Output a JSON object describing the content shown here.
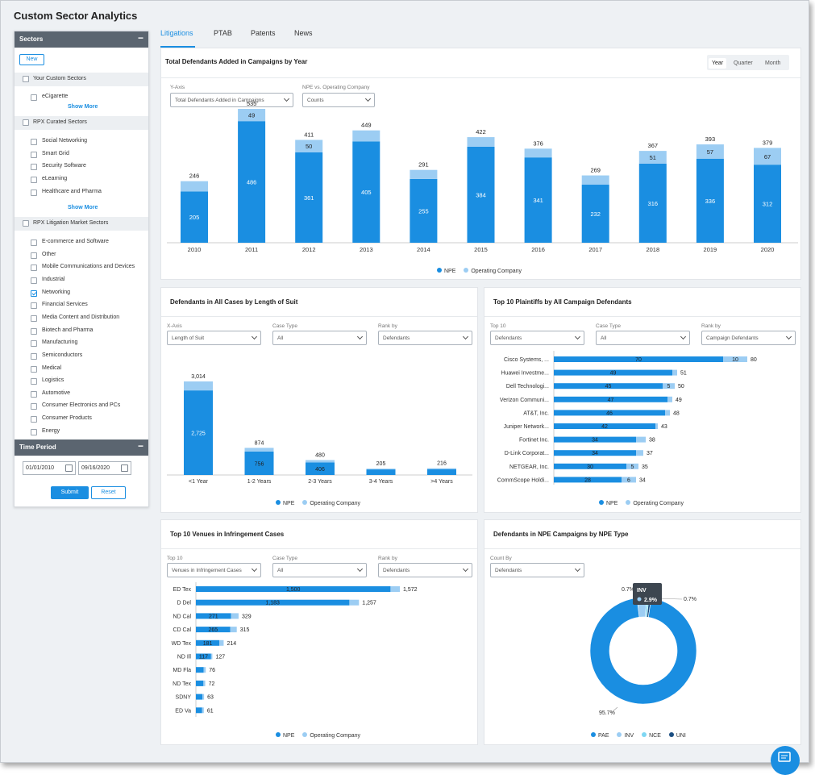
{
  "app": {
    "title": "Custom Sector Analytics"
  },
  "sidebar": {
    "sectors_header": "Sectors",
    "new_label": "New",
    "custom_group": "Your Custom Sectors",
    "custom_items": [
      "eCigarette"
    ],
    "show_more": "Show More",
    "curated_group": "RPX Curated Sectors",
    "curated_items": [
      "Social Networking",
      "Smart Grid",
      "Security Software",
      "eLearning",
      "Healthcare and Pharma"
    ],
    "market_group": "RPX Litigation Market Sectors",
    "market_items": [
      "E-commerce and Software",
      "Other",
      "Mobile Communications and Devices",
      "Industrial",
      "Networking",
      "Financial Services",
      "Media Content and Distribution",
      "Biotech and Pharma",
      "Manufacturing",
      "Semiconductors",
      "Medical",
      "Logistics",
      "Automotive",
      "Consumer Electronics and PCs",
      "Consumer Products",
      "Energy"
    ],
    "checked_item": "Networking",
    "time_header": "Time Period",
    "start_date": "01/01/2010",
    "end_date": "09/16/2020",
    "submit_label": "Submit",
    "reset_label": "Reset"
  },
  "tabs": [
    "Litigations",
    "PTAB",
    "Patents",
    "News"
  ],
  "active_tab": "Litigations",
  "colors": {
    "npe": "#1a8ee1",
    "operating": "#9ccdf3",
    "pae": "#1a8ee1",
    "inv": "#9ccdf3",
    "nce": "#7fd7f3",
    "uni": "#1c4f82",
    "tooltip": "#3d4650"
  },
  "panel1": {
    "title": "Total Defendants Added in Campaigns by Year",
    "granularity": [
      "Year",
      "Quarter",
      "Month"
    ],
    "selected_granularity": "Year",
    "yaxis_label": "Y-Axis",
    "yaxis_value": "Total Defendants Added in Campaigns",
    "npe_label": "NPE vs. Operating Company",
    "npe_value": "Counts",
    "legend": [
      "NPE",
      "Operating Company"
    ]
  },
  "panel2": {
    "title": "Defendants in All Cases by Length of Suit",
    "xaxis_label": "X-Axis",
    "xaxis_value": "Length of Suit",
    "casetype_label": "Case Type",
    "casetype_value": "All",
    "rankby_label": "Rank by",
    "rankby_value": "Defendants",
    "legend": [
      "NPE",
      "Operating Company"
    ]
  },
  "panel3": {
    "title": "Top 10 Plaintiffs by All Campaign Defendants",
    "top_label": "Top 10",
    "top_value": "Defendants",
    "casetype_label": "Case Type",
    "casetype_value": "All",
    "rankby_label": "Rank by",
    "rankby_value": "Campaign Defendants",
    "legend": [
      "NPE",
      "Operating Company"
    ]
  },
  "panel4": {
    "title": "Top 10 Venues in Infringement Cases",
    "top_label": "Top 10",
    "top_value": "Venues in Infringement Cases",
    "casetype_label": "Case Type",
    "casetype_value": "All",
    "rankby_label": "Rank by",
    "rankby_value": "Defendants",
    "legend": [
      "NPE",
      "Operating Company"
    ]
  },
  "panel5": {
    "title": "Defendants in NPE Campaigns by NPE Type",
    "countby_label": "Count By",
    "countby_value": "Defendants",
    "tooltip_title": "INV",
    "tooltip_value": "2.9%",
    "legend": [
      "PAE",
      "INV",
      "NCE",
      "UNI"
    ]
  },
  "chart_data": [
    {
      "type": "bar",
      "title": "Total Defendants Added in Campaigns by Year",
      "categories": [
        "2010",
        "2011",
        "2012",
        "2013",
        "2014",
        "2015",
        "2016",
        "2017",
        "2018",
        "2019",
        "2020"
      ],
      "series": [
        {
          "name": "NPE",
          "values": [
            205,
            486,
            361,
            405,
            255,
            384,
            341,
            232,
            316,
            336,
            312
          ]
        },
        {
          "name": "Operating Company",
          "values": [
            41,
            49,
            50,
            44,
            36,
            38,
            35,
            37,
            51,
            57,
            67
          ]
        }
      ],
      "totals": [
        246,
        535,
        411,
        449,
        291,
        422,
        376,
        269,
        367,
        393,
        379
      ],
      "npe_labels": [
        "205",
        "486",
        "361",
        "405",
        "255",
        "384",
        "341",
        "232",
        "316",
        "336",
        "312"
      ],
      "op_labels": [
        "",
        "49",
        "50",
        "",
        "",
        "",
        "",
        "",
        "51",
        "57",
        "67"
      ],
      "total_labels": [
        "246",
        "535",
        "411",
        "449",
        "291",
        "422",
        "376",
        "269",
        "367",
        "393",
        "379"
      ],
      "ylim": [
        0,
        560
      ]
    },
    {
      "type": "bar",
      "title": "Defendants in All Cases by Length of Suit",
      "categories": [
        "<1 Year",
        "1-2 Years",
        "2-3 Years",
        "3-4 Years",
        ">4 Years"
      ],
      "series": [
        {
          "name": "NPE",
          "values": [
            2725,
            756,
            406,
            180,
            190
          ]
        },
        {
          "name": "Operating Company",
          "values": [
            289,
            118,
            74,
            25,
            26
          ]
        }
      ],
      "totals": [
        3014,
        874,
        480,
        205,
        216
      ],
      "npe_labels": [
        "2,725",
        "756",
        "406",
        "",
        ""
      ],
      "total_labels": [
        "3,014",
        "874",
        "480",
        "205",
        "216"
      ],
      "ylim": [
        0,
        3200
      ]
    },
    {
      "type": "bar",
      "orientation": "horizontal",
      "title": "Top 10 Plaintiffs by All Campaign Defendants",
      "categories": [
        "Cisco Systems, ...",
        "Huawei Investme...",
        "Dell Technologi...",
        "Verizon Communi...",
        "AT&T, Inc.",
        "Juniper Network...",
        "Fortinet Inc.",
        "D-Link Corporat...",
        "NETGEAR, Inc.",
        "CommScope Holdi..."
      ],
      "series": [
        {
          "name": "NPE",
          "values": [
            70,
            49,
            45,
            47,
            46,
            42,
            34,
            34,
            30,
            28
          ]
        },
        {
          "name": "Operating Company",
          "values": [
            10,
            2,
            5,
            2,
            2,
            1,
            4,
            3,
            5,
            6
          ]
        }
      ],
      "totals": [
        80,
        51,
        50,
        49,
        48,
        43,
        38,
        37,
        35,
        34
      ],
      "op_labels": [
        "10",
        "",
        "5",
        "",
        "",
        "",
        "",
        "",
        "5",
        "6"
      ],
      "xlim": [
        0,
        82
      ]
    },
    {
      "type": "bar",
      "orientation": "horizontal",
      "title": "Top 10 Venues in Infringement Cases",
      "categories": [
        "ED Tex",
        "D Del",
        "ND Cal",
        "CD Cal",
        "WD Tex",
        "ND Ill",
        "MD Fla",
        "ND Tex",
        "SDNY",
        "ED Va"
      ],
      "series": [
        {
          "name": "NPE",
          "values": [
            1500,
            1183,
            271,
            265,
            181,
            117,
            60,
            58,
            50,
            48
          ]
        },
        {
          "name": "Operating Company",
          "values": [
            72,
            74,
            58,
            50,
            33,
            10,
            16,
            14,
            13,
            13
          ]
        }
      ],
      "totals": [
        1572,
        1257,
        329,
        315,
        214,
        127,
        76,
        72,
        63,
        61
      ],
      "npe_labels": [
        "1,500",
        "1,183",
        "271",
        "265",
        "181",
        "117",
        "",
        "",
        "",
        ""
      ],
      "total_labels": [
        "1,572",
        "1,257",
        "329",
        "315",
        "214",
        "127",
        "76",
        "72",
        "63",
        "61"
      ],
      "xlim": [
        0,
        1600
      ]
    },
    {
      "type": "pie",
      "title": "Defendants in NPE Campaigns by NPE Type",
      "categories": [
        "PAE",
        "INV",
        "NCE",
        "UNI"
      ],
      "values": [
        95.7,
        2.9,
        0.7,
        0.7
      ],
      "labels": [
        "95.7%",
        "2.9%",
        "0.7%",
        "0.7%"
      ]
    }
  ]
}
